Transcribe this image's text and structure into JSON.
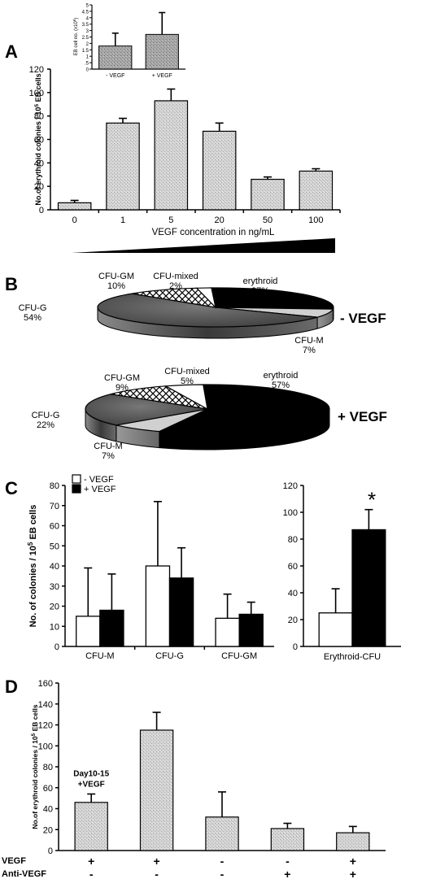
{
  "panels": {
    "A": {
      "letter": "A"
    },
    "B": {
      "letter": "B"
    },
    "C": {
      "letter": "C"
    },
    "D": {
      "letter": "D"
    }
  },
  "chart_data": [
    {
      "panel": "A",
      "type": "bar",
      "ylabel": "No.of erythroid colonies / 10⁵ EB cells",
      "xlabel": "VEGF concentration in ng/mL",
      "categories": [
        "0",
        "1",
        "5",
        "20",
        "50",
        "100"
      ],
      "values": [
        6,
        74,
        93,
        67,
        26,
        33
      ],
      "errors": [
        2,
        4,
        10,
        7,
        2,
        2
      ],
      "ylim": [
        0,
        120
      ],
      "yticks": [
        "0",
        "20",
        "40",
        "60",
        "80",
        "100",
        "120"
      ]
    },
    {
      "panel": "A-inset",
      "type": "bar",
      "ylabel": "EB cell no. (x10⁶)",
      "categories": [
        "- VEGF",
        "+ VEGF"
      ],
      "values": [
        1.8,
        2.7
      ],
      "errors": [
        1.0,
        1.7
      ],
      "ylim": [
        0,
        5
      ],
      "yticks": [
        "0",
        ".5",
        "1",
        "1.5",
        "2",
        "2.5",
        "3",
        "3.5",
        "4",
        "4.5",
        "5"
      ]
    },
    {
      "panel": "B-top",
      "type": "pie",
      "title": "- VEGF",
      "slices": [
        {
          "label": "erythroid",
          "pct": "27%",
          "value": 27,
          "color": "#000000"
        },
        {
          "label": "CFU-M",
          "pct": "7%",
          "value": 7,
          "color": "#cccccc"
        },
        {
          "label": "CFU-G",
          "pct": "54%",
          "value": 54,
          "color": "#555555"
        },
        {
          "label": "CFU-GM",
          "pct": "10%",
          "value": 10,
          "color": "hatch"
        },
        {
          "label": "CFU-mixed",
          "pct": "2%",
          "value": 2,
          "color": "#ffffff"
        }
      ]
    },
    {
      "panel": "B-bottom",
      "type": "pie",
      "title": "+ VEGF",
      "slices": [
        {
          "label": "erythroid",
          "pct": "57%",
          "value": 57,
          "color": "#000000"
        },
        {
          "label": "CFU-M",
          "pct": "7%",
          "value": 7,
          "color": "#cccccc"
        },
        {
          "label": "CFU-G",
          "pct": "22%",
          "value": 22,
          "color": "#555555"
        },
        {
          "label": "CFU-GM",
          "pct": "9%",
          "value": 9,
          "color": "hatch"
        },
        {
          "label": "CFU-mixed",
          "pct": "5%",
          "value": 5,
          "color": "#ffffff"
        }
      ]
    },
    {
      "panel": "C-left",
      "type": "bar",
      "ylabel": "No. of  colonies / 10⁵ EB cells",
      "categories": [
        "CFU-M",
        "CFU-G",
        "CFU-GM"
      ],
      "series": [
        {
          "name": "- VEGF",
          "color": "#ffffff",
          "values": [
            15,
            40,
            14
          ],
          "errors": [
            24,
            32,
            12
          ]
        },
        {
          "name": "+ VEGF",
          "color": "#000000",
          "values": [
            18,
            34,
            16
          ],
          "errors": [
            18,
            15,
            6
          ]
        }
      ],
      "ylim": [
        0,
        80
      ],
      "yticks": [
        "0",
        "10",
        "20",
        "30",
        "40",
        "50",
        "60",
        "70",
        "80"
      ]
    },
    {
      "panel": "C-right",
      "type": "bar",
      "categories": [
        "Erythroid-CFU"
      ],
      "series": [
        {
          "name": "- VEGF",
          "color": "#ffffff",
          "values": [
            25
          ],
          "errors": [
            18
          ]
        },
        {
          "name": "+ VEGF",
          "color": "#000000",
          "values": [
            87
          ],
          "errors": [
            15
          ]
        }
      ],
      "annotation": "*",
      "ylim": [
        0,
        120
      ],
      "yticks": [
        "0",
        "20",
        "40",
        "60",
        "80",
        "100",
        "120"
      ]
    },
    {
      "panel": "D",
      "type": "bar",
      "ylabel": "No.of erythroid colonies / 10⁵ EB cells",
      "values": [
        46,
        115,
        32,
        21,
        17
      ],
      "errors": [
        8,
        17,
        24,
        5,
        6
      ],
      "bar_annotation": {
        "index": 0,
        "lines": [
          "Day10-15",
          "+VEGF"
        ]
      },
      "ylim": [
        0,
        160
      ],
      "yticks": [
        "0",
        "20",
        "40",
        "60",
        "80",
        "100",
        "120",
        "140",
        "160"
      ],
      "row_labels": [
        "VEGF",
        "Anti-VEGF"
      ],
      "vegf": [
        "+",
        "+",
        "-",
        "-",
        "+"
      ],
      "anti_vegf": [
        "-",
        "-",
        "-",
        "+",
        "+"
      ]
    }
  ]
}
